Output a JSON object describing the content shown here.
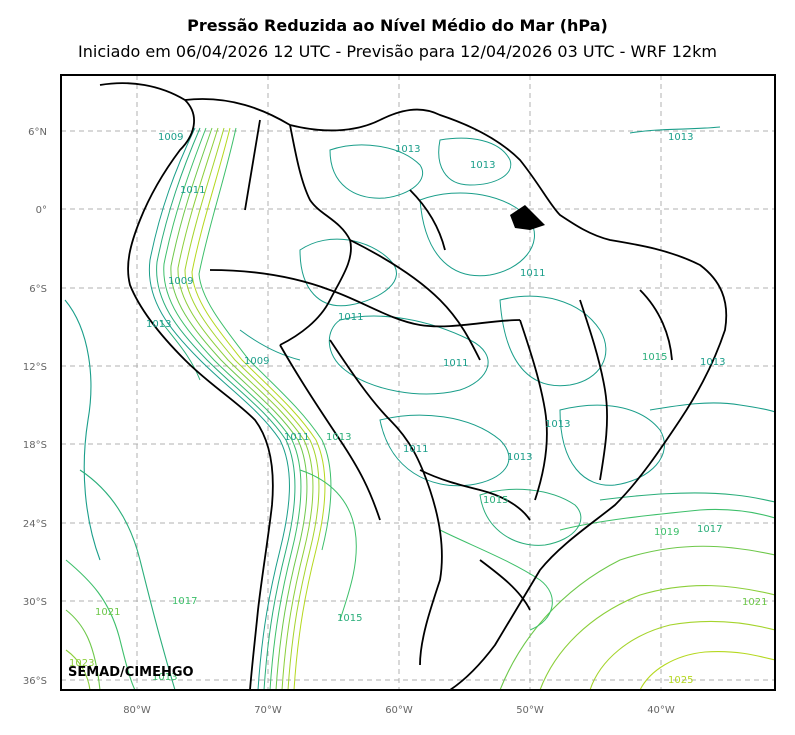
{
  "title": "Pressão Reduzida ao Nível Médio do Mar (hPa)",
  "subtitle": "Iniciado em 06/04/2026 12 UTC - Previsão para 12/04/2026 03 UTC - WRF 12km",
  "credit": "SEMAD/CIMEHGO",
  "lat_ticks": [
    "6°N",
    "0°",
    "6°S",
    "12°S",
    "18°S",
    "24°S",
    "30°S",
    "36°S"
  ],
  "lon_ticks": [
    "80°W",
    "70°W",
    "60°W",
    "50°W",
    "40°W"
  ],
  "contour_labels": [
    "1009",
    "1011",
    "1013",
    "1013",
    "1013",
    "1011",
    "1009",
    "1011",
    "1009",
    "1011",
    "1011",
    "1015",
    "1013",
    "1013",
    "1013",
    "1011",
    "1013",
    "1013",
    "1015",
    "1019",
    "1017",
    "1021",
    "1017",
    "1021",
    "1015",
    "1023",
    "1013",
    "1025"
  ],
  "colors": {
    "low": "#1a9e8a",
    "mid": "#3dbf6a",
    "high": "#8ccf3a",
    "highest": "#b5d81f",
    "border": "#000000",
    "grid": "#b0b0b0"
  }
}
